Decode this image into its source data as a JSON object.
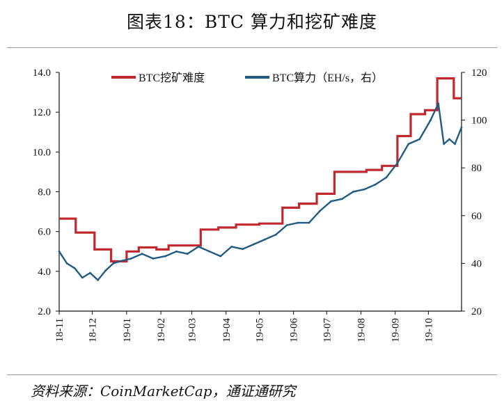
{
  "title": "图表18：BTC 算力和挖矿难度",
  "source": "资料来源：CoinMarketCap，通证通研究",
  "colors": {
    "difficulty": "#c0282e",
    "hashrate": "#1f5b82",
    "axis": "#111111"
  },
  "chart_data": {
    "type": "line",
    "x_tick_labels": [
      "18-11",
      "18-12",
      "19-01",
      "19-02",
      "19-03",
      "19-04",
      "19-05",
      "19-06",
      "19-07",
      "19-08",
      "19-09",
      "19-10"
    ],
    "x_range": [
      "2018-11-01",
      "2019-10-31"
    ],
    "y_left": {
      "ticks": [
        "2.0",
        "4.0",
        "6.0",
        "8.0",
        "10.0",
        "12.0",
        "14.0"
      ],
      "range": [
        2,
        14
      ]
    },
    "y_right": {
      "ticks": [
        "20",
        "40",
        "60",
        "80",
        "100",
        "120"
      ],
      "range": [
        20,
        120
      ]
    },
    "legend_position": "top",
    "series": [
      {
        "name": "BTC挖矿难度",
        "axis": "left",
        "style": "step",
        "points": [
          [
            "2018-11-01",
            6.65
          ],
          [
            "2018-11-16",
            5.95
          ],
          [
            "2018-12-03",
            5.1
          ],
          [
            "2018-12-18",
            4.5
          ],
          [
            "2019-01-01",
            5.0
          ],
          [
            "2019-01-12",
            5.2
          ],
          [
            "2019-01-28",
            5.1
          ],
          [
            "2019-02-08",
            5.3
          ],
          [
            "2019-03-09",
            6.1
          ],
          [
            "2019-03-25",
            6.2
          ],
          [
            "2019-04-10",
            6.35
          ],
          [
            "2019-05-01",
            6.4
          ],
          [
            "2019-05-22",
            7.2
          ],
          [
            "2019-06-06",
            7.4
          ],
          [
            "2019-06-22",
            7.9
          ],
          [
            "2019-07-08",
            9.0
          ],
          [
            "2019-07-20",
            9.0
          ],
          [
            "2019-08-06",
            9.1
          ],
          [
            "2019-08-20",
            9.3
          ],
          [
            "2019-09-03",
            10.8
          ],
          [
            "2019-09-15",
            11.9
          ],
          [
            "2019-09-28",
            12.1
          ],
          [
            "2019-10-09",
            13.7
          ],
          [
            "2019-10-24",
            12.7
          ],
          [
            "2019-10-31",
            12.7
          ]
        ]
      },
      {
        "name": "BTC算力（EH/s，右）",
        "axis": "right",
        "style": "line",
        "points": [
          [
            "2018-11-01",
            45
          ],
          [
            "2018-11-08",
            40
          ],
          [
            "2018-11-15",
            38
          ],
          [
            "2018-11-22",
            34
          ],
          [
            "2018-11-29",
            36
          ],
          [
            "2018-12-06",
            33
          ],
          [
            "2018-12-13",
            37
          ],
          [
            "2018-12-20",
            40
          ],
          [
            "2018-12-27",
            41
          ],
          [
            "2019-01-05",
            42
          ],
          [
            "2019-01-15",
            44
          ],
          [
            "2019-01-25",
            42
          ],
          [
            "2019-02-05",
            43
          ],
          [
            "2019-02-15",
            45
          ],
          [
            "2019-02-25",
            44
          ],
          [
            "2019-03-07",
            47
          ],
          [
            "2019-03-17",
            45
          ],
          [
            "2019-03-27",
            43
          ],
          [
            "2019-04-06",
            47
          ],
          [
            "2019-04-16",
            46
          ],
          [
            "2019-04-26",
            48
          ],
          [
            "2019-05-06",
            50
          ],
          [
            "2019-05-16",
            52
          ],
          [
            "2019-05-26",
            56
          ],
          [
            "2019-06-05",
            57
          ],
          [
            "2019-06-15",
            57
          ],
          [
            "2019-06-25",
            62
          ],
          [
            "2019-07-05",
            66
          ],
          [
            "2019-07-15",
            67
          ],
          [
            "2019-07-25",
            70
          ],
          [
            "2019-08-04",
            71
          ],
          [
            "2019-08-14",
            73
          ],
          [
            "2019-08-24",
            76
          ],
          [
            "2019-09-03",
            82
          ],
          [
            "2019-09-13",
            90
          ],
          [
            "2019-09-23",
            92
          ],
          [
            "2019-10-03",
            100
          ],
          [
            "2019-10-10",
            107
          ],
          [
            "2019-10-15",
            90
          ],
          [
            "2019-10-20",
            92
          ],
          [
            "2019-10-25",
            90
          ],
          [
            "2019-10-31",
            97
          ]
        ]
      }
    ]
  }
}
